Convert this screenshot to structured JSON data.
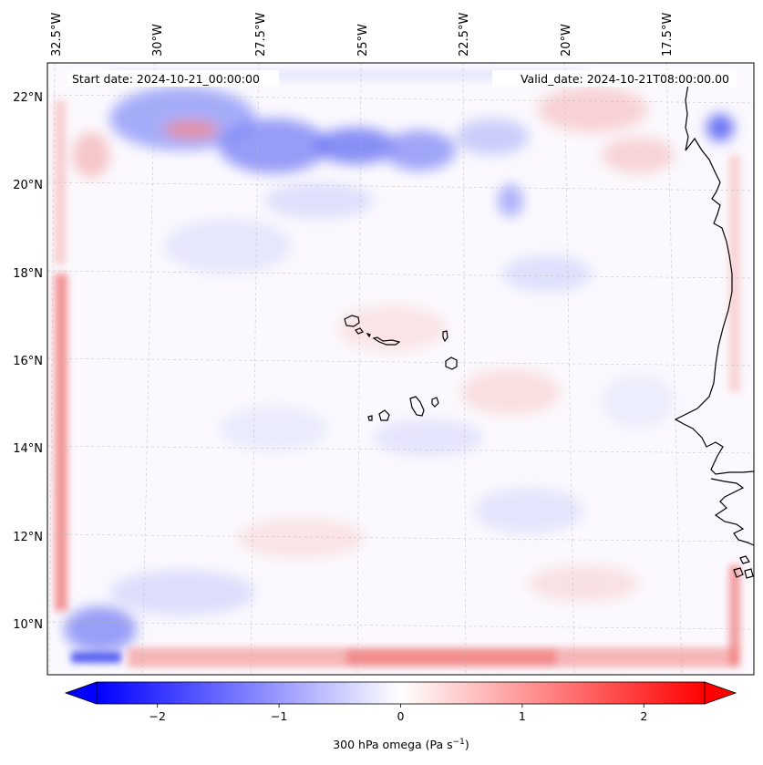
{
  "map": {
    "start_label": "Start date: 2024-10-21_00:00:00",
    "valid_label": "Valid_date: 2024-10-21T08:00:00.00",
    "lon_ticks": [
      "32.5°W",
      "30°W",
      "27.5°W",
      "25°W",
      "22.5°W",
      "20°W",
      "17.5°W"
    ],
    "lat_ticks": [
      "22°N",
      "20°N",
      "18°N",
      "16°N",
      "14°N",
      "12°N",
      "10°N"
    ],
    "field": "300 hPa omega",
    "extent": {
      "lon_min": -33.0,
      "lon_max": -16.2,
      "lat_min": 8.9,
      "lat_max": 22.7
    }
  },
  "colorbar": {
    "label_prefix": "300 hPa omega (Pa s",
    "label_exp": "−1",
    "label_suffix": ")",
    "tick_labels": [
      "−2",
      "−1",
      "0",
      "1",
      "2"
    ],
    "tick_values": [
      -2,
      -1,
      0,
      1,
      2
    ],
    "vmin": -2.5,
    "vmax": 2.5,
    "extend": "both",
    "colormap": "bwr",
    "low_color": "#0000ff",
    "mid_color": "#ffffff",
    "high_color": "#ff0000"
  }
}
